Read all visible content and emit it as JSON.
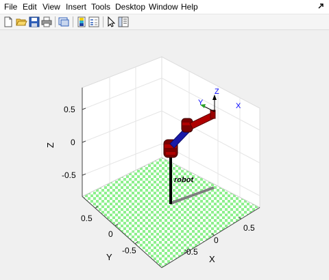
{
  "menu": {
    "items": [
      {
        "id": "file",
        "label": "File"
      },
      {
        "id": "edit",
        "label": "Edit"
      },
      {
        "id": "view",
        "label": "View"
      },
      {
        "id": "insert",
        "label": "Insert"
      },
      {
        "id": "tools",
        "label": "Tools"
      },
      {
        "id": "desktop",
        "label": "Desktop"
      },
      {
        "id": "window",
        "label": "Window"
      },
      {
        "id": "help",
        "label": "Help"
      }
    ],
    "dock_icon": "dock-arrow-icon"
  },
  "toolbar": {
    "icons": [
      "new-figure-icon",
      "open-file-icon",
      "save-icon",
      "print-icon",
      "link-plot-icon",
      "insert-colorbar-icon",
      "insert-legend-icon",
      "select-arrow-icon",
      "property-inspector-icon"
    ]
  },
  "plot": {
    "z_label": "Z",
    "y_label": "Y",
    "x_label": "X",
    "z_ticks": [
      "0.5",
      "0",
      "-0.5"
    ],
    "y_ticks": [
      "0.5",
      "0",
      "-0.5"
    ],
    "x_ticks": [
      "-0.5",
      "0",
      "0.5"
    ],
    "robot_name": "robot",
    "frame_labels": {
      "x": "X",
      "y": "Y",
      "z": "Z"
    },
    "colors": {
      "floor_checker": "#8ef08e",
      "link_red": "#b00000",
      "link_blue": "#1a1aa8",
      "joint_dark_red": "#7a0000",
      "base_pole": "#000000",
      "shadow": "#7f7f7f",
      "frame_axes": "#0000ff"
    }
  }
}
